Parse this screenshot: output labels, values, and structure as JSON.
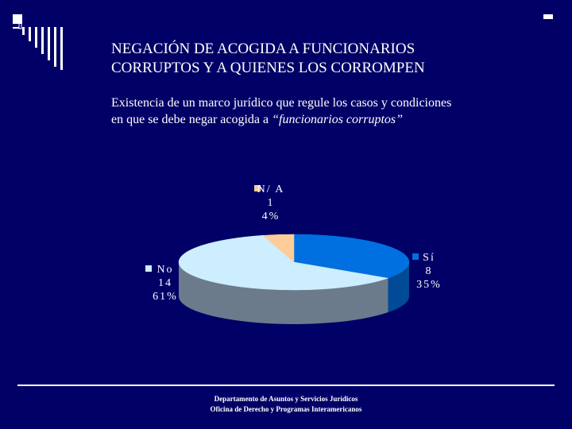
{
  "slide": {
    "title_line1": "NEGACIÓN DE ACOGIDA A FUNCIONARIOS",
    "title_line2": "CORRUPTOS Y A QUIENES LOS CORROMPEN",
    "subtitle_line1": "Existencia de un marco jurídico que regule los casos y condiciones",
    "subtitle_line2_prefix": "en que se debe negar acogida a ",
    "subtitle_line2_quoted": "“funcionarios corruptos”",
    "footer_line1": "Departamento de Asuntos y Servicios Jurídicos",
    "footer_line2": "Oficina de Derecho y Programas Interamericanos"
  },
  "chart_data": {
    "type": "pie",
    "style": "3d",
    "slices": [
      {
        "label": "Sí",
        "value": 8,
        "percent": "35%",
        "color": "#0070e0",
        "side_color": "#004a96"
      },
      {
        "label": "No",
        "value": 14,
        "percent": "61%",
        "color": "#cceeff",
        "side_color": "#6b7b8c"
      },
      {
        "label": "N/ A",
        "value": 1,
        "percent": "4%",
        "color": "#ffcc99",
        "side_color": "#b08060"
      }
    ],
    "legend": "labels beside slices"
  }
}
